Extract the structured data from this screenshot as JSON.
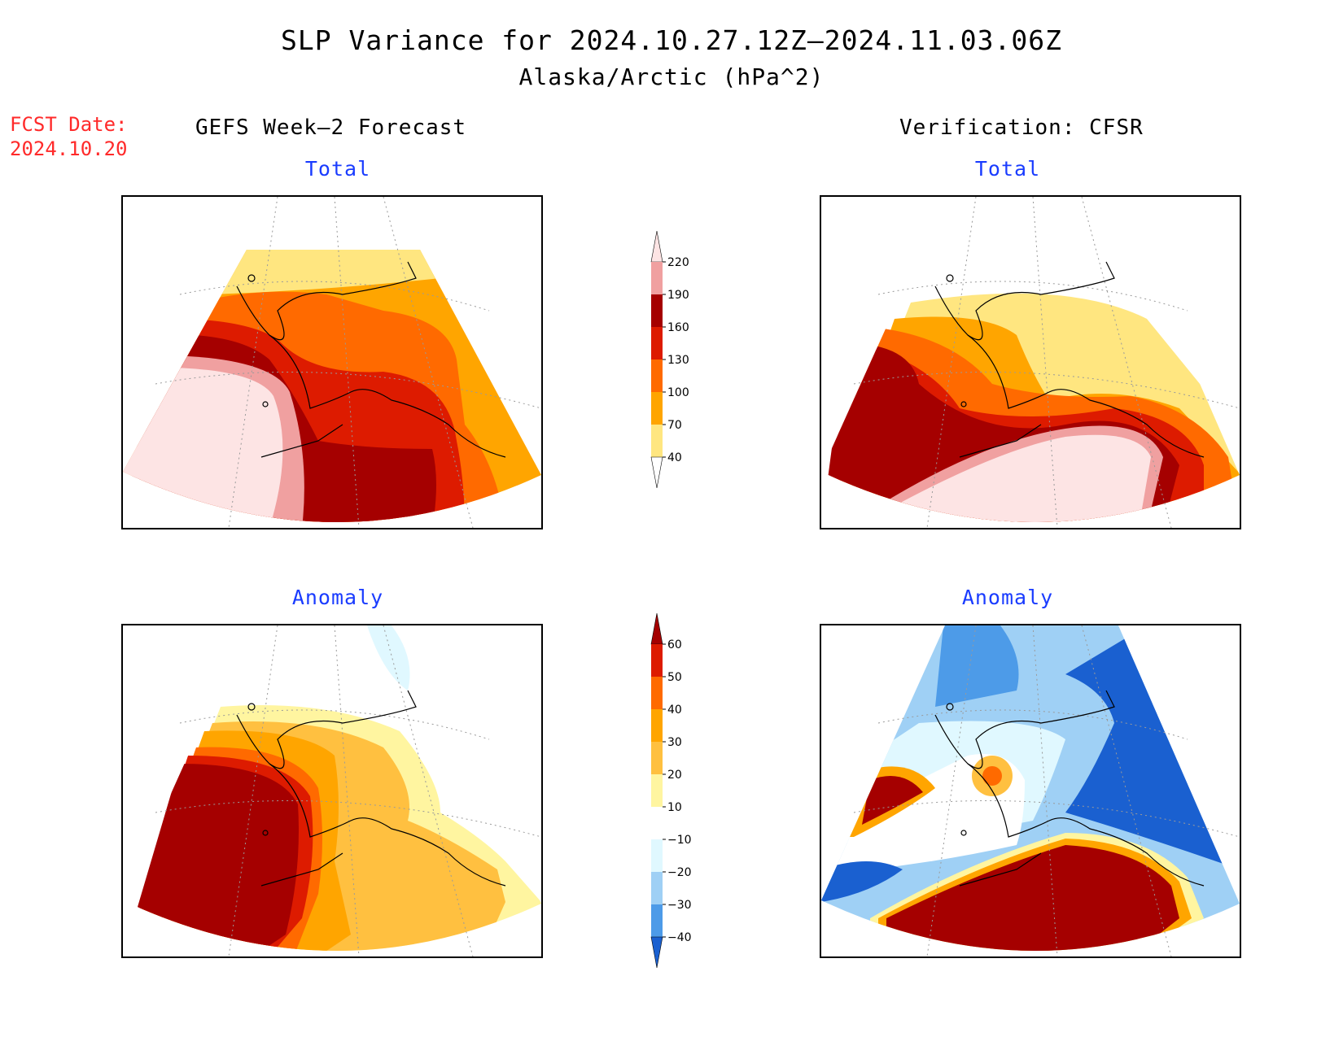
{
  "title": "SLP Variance for 2024.10.27.12Z–2024.11.03.06Z",
  "subtitle": "Alaska/Arctic (hPa^2)",
  "fcst_date": {
    "label": "FCST Date:",
    "value": "2024.10.20"
  },
  "columns": {
    "left": "GEFS Week–2 Forecast",
    "right": "Verification: CFSR"
  },
  "panels": {
    "fcst_total": "Total",
    "verif_total": "Total",
    "fcst_anomaly": "Anomaly",
    "verif_anomaly": "Anomaly"
  },
  "colorbar_total": {
    "levels": [
      "220",
      "190",
      "160",
      "130",
      "100",
      "70",
      "40"
    ],
    "colors": [
      "#fde4e4",
      "#f0a0a0",
      "#a50000",
      "#dd1b00",
      "#ff6a00",
      "#ffa500",
      "#ffe680",
      "#ffffff"
    ]
  },
  "colorbar_anomaly": {
    "levels": [
      "60",
      "50",
      "40",
      "30",
      "20",
      "10",
      "−10",
      "−20",
      "−30",
      "−40"
    ],
    "colors": [
      "#a50000",
      "#dd1b00",
      "#ff6a00",
      "#ffa500",
      "#ffc040",
      "#fff5a0",
      "#ffffff",
      "#e0f8ff",
      "#9fd0f5",
      "#4d9be8",
      "#1a60d0"
    ]
  },
  "palette": {
    "pale_pink": "#fde4e4",
    "pink": "#f0a0a0",
    "dark_red": "#a50000",
    "red": "#dd1b00",
    "dark_orange": "#ff6a00",
    "orange": "#ffa500",
    "light_orange": "#ffc040",
    "yellow": "#ffe680",
    "pale_yellow": "#fff5a0",
    "pale_blue": "#e0f8ff",
    "light_blue": "#9fd0f5",
    "blue": "#4d9be8",
    "dark_blue": "#1a60d0",
    "title_blue": "#1a3cff",
    "fcst_red": "#ff2a2a"
  }
}
